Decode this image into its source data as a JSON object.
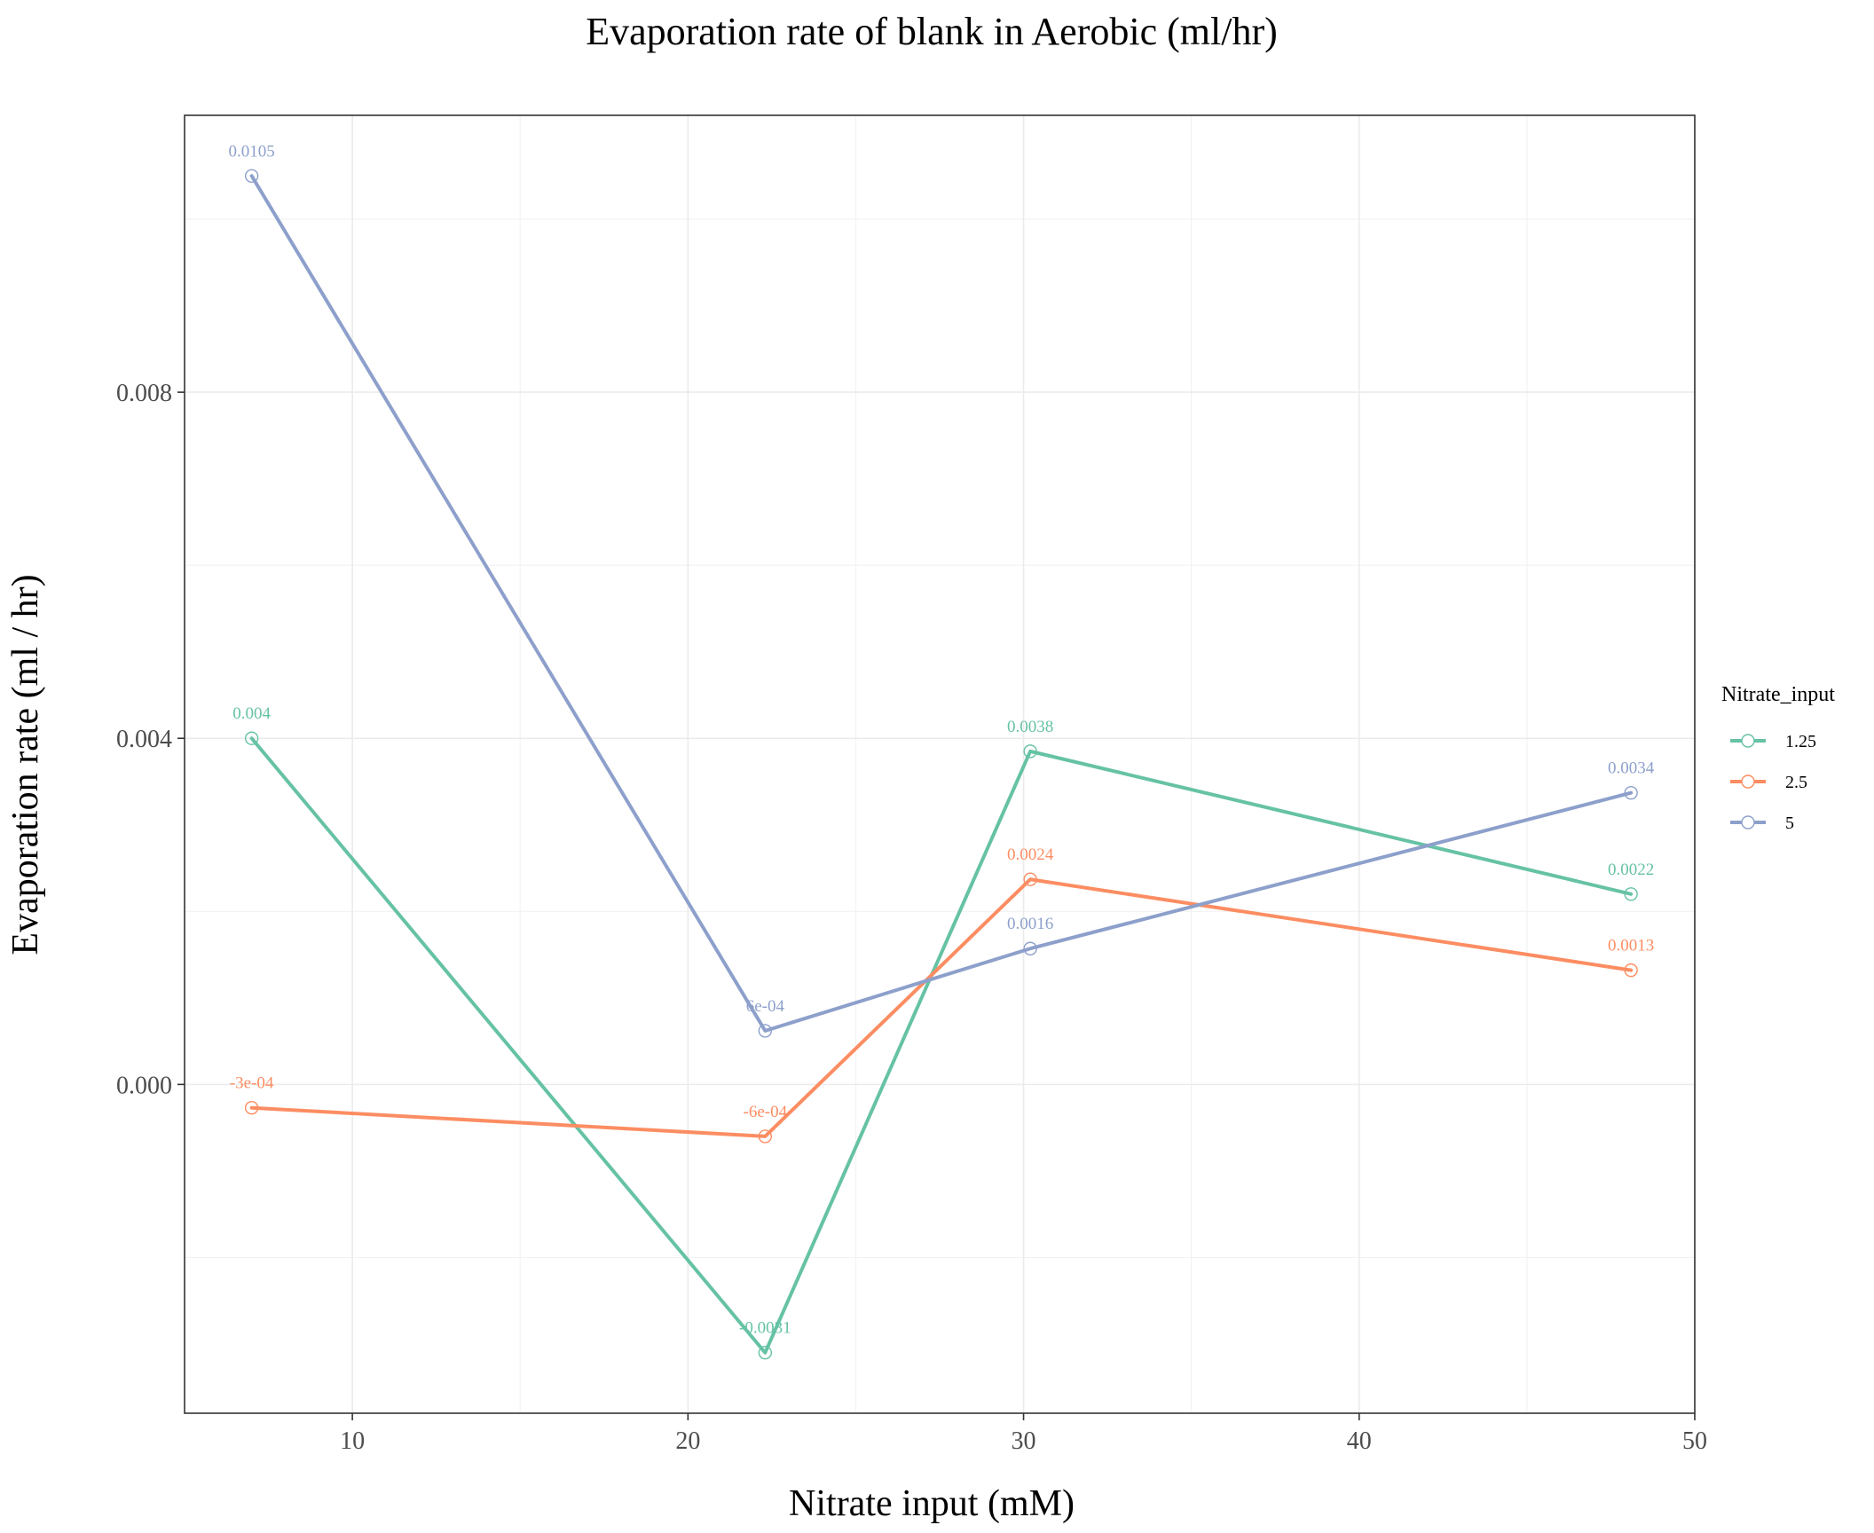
{
  "chart_data": {
    "type": "line",
    "title": "Evaporation rate of blank in Aerobic (ml/hr)",
    "xlabel": "Nitrate input (mM)",
    "ylabel": "Evaporation rate (ml / hr)",
    "xlim": [
      5,
      50
    ],
    "ylim": [
      -0.0038,
      0.0112
    ],
    "x_ticks": [
      10,
      20,
      30,
      40,
      50
    ],
    "x_tick_labels": [
      "10",
      "20",
      "30",
      "40",
      "50"
    ],
    "y_ticks": [
      0.0,
      0.004,
      0.008
    ],
    "y_tick_labels": [
      "0.000",
      "0.004",
      "0.008"
    ],
    "grid": true,
    "legend": {
      "title": "Nitrate_input",
      "placement": "right"
    },
    "series": [
      {
        "name": "1.25",
        "color": "#66c2a5",
        "x": [
          7.0,
          22.3,
          30.2,
          48.1
        ],
        "y": [
          0.004,
          -0.0031,
          0.00385,
          0.0022
        ],
        "labels": [
          "0.004",
          "-0.0031",
          "0.0038",
          "0.0022"
        ]
      },
      {
        "name": "2.5",
        "color": "#fc8d62",
        "x": [
          7.0,
          22.3,
          30.2,
          48.1
        ],
        "y": [
          -0.00027,
          -0.0006,
          0.00237,
          0.00132
        ],
        "labels": [
          "-3e-04",
          "-6e-04",
          "0.0024",
          "0.0013"
        ]
      },
      {
        "name": "5",
        "color": "#8da0cb",
        "x": [
          7.0,
          22.3,
          30.2,
          48.1
        ],
        "y": [
          0.0105,
          0.00062,
          0.00157,
          0.00337
        ],
        "labels": [
          "0.0105",
          "6e-04",
          "0.0016",
          "0.0034"
        ]
      }
    ]
  }
}
